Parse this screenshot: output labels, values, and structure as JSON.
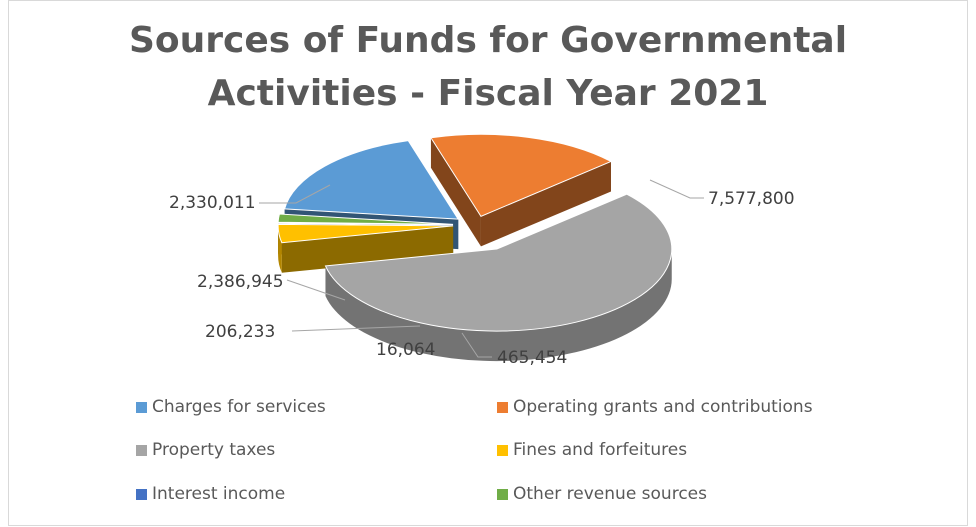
{
  "chart_data": {
    "type": "pie",
    "title": "Sources of Funds for Governmental Activities - Fiscal Year 2021",
    "title_lines": [
      "Sources of Funds for Governmental",
      "Activities - Fiscal Year 2021"
    ],
    "style": "3d-exploded",
    "legend_position": "bottom",
    "slices": [
      {
        "label": "Charges for services",
        "value": 2386945,
        "display": "2,386,945",
        "color": "#5b9bd5"
      },
      {
        "label": "Operating grants and contributions",
        "value": 2330011,
        "display": "2,330,011",
        "color": "#ed7d31"
      },
      {
        "label": "Property taxes",
        "value": 7577800,
        "display": "7,577,800",
        "color": "#a5a5a5"
      },
      {
        "label": "Fines and forfeitures",
        "value": 465454,
        "display": "465,454",
        "color": "#ffc000"
      },
      {
        "label": "Interest income",
        "value": 16064,
        "display": "16,064",
        "color": "#4472c4"
      },
      {
        "label": "Other revenue sources",
        "value": 206233,
        "display": "206,233",
        "color": "#70ad47"
      }
    ]
  }
}
